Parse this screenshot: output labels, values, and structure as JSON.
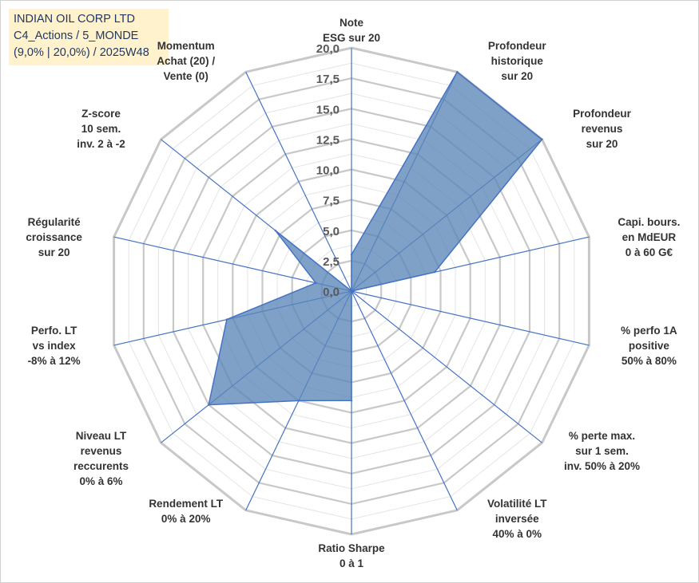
{
  "title": {
    "line1": "INDIAN OIL CORP LTD",
    "line2": "C4_Actions / 5_MONDE",
    "line3": "(9,0% | 20,0%) / 2025W48"
  },
  "colors": {
    "grid": "#c8c8c8",
    "spoke": "#4472c4",
    "fill": "#5b87b9",
    "fill_stroke": "#4472c4",
    "title_bg": "#fff2cc",
    "title_text": "#1f3864"
  },
  "chart_data": {
    "type": "radar",
    "rmax": 20,
    "ticks": [
      "0,0",
      "2,5",
      "5,0",
      "7,5",
      "10,0",
      "12,5",
      "15,0",
      "17,5",
      "20,0"
    ],
    "tick_values": [
      0,
      2.5,
      5,
      7.5,
      10,
      12.5,
      15,
      17.5,
      20
    ],
    "axes": [
      {
        "lines": [
          "Note",
          "ESG sur 20"
        ]
      },
      {
        "lines": [
          "Profondeur",
          "historique",
          "sur 20"
        ]
      },
      {
        "lines": [
          "Profondeur",
          "revenus",
          "sur 20"
        ]
      },
      {
        "lines": [
          "Capi. bours.",
          "en MdEUR",
          "0 à 60 G€"
        ]
      },
      {
        "lines": [
          "% perfo 1A",
          "positive",
          "50% à 80%"
        ]
      },
      {
        "lines": [
          "% perte max.",
          "sur 1 sem.",
          "inv. 50% à 20%"
        ]
      },
      {
        "lines": [
          "Volatilité LT",
          "inversée",
          "40% à 0%"
        ]
      },
      {
        "lines": [
          "Ratio Sharpe",
          "0 à 1"
        ]
      },
      {
        "lines": [
          "Rendement LT",
          "0% à 20%"
        ]
      },
      {
        "lines": [
          "Niveau LT",
          "revenus",
          "reccurents",
          "0% à 6%"
        ]
      },
      {
        "lines": [
          "Perfo. LT",
          "vs index",
          "-8% à 12%"
        ]
      },
      {
        "lines": [
          "Régularité",
          "croissance",
          "sur 20"
        ]
      },
      {
        "lines": [
          "Z-score",
          "10 sem.",
          "inv. 2 à -2"
        ]
      },
      {
        "lines": [
          "Momentum",
          "Achat (20) /",
          "Vente (0)"
        ]
      }
    ],
    "series": [
      {
        "name": "INDIAN OIL CORP LTD",
        "values": [
          3.0,
          20.0,
          20.0,
          7.0,
          0.0,
          0.0,
          0.0,
          9.0,
          10.0,
          15.0,
          10.5,
          3.0,
          8.0,
          0.0
        ]
      }
    ]
  }
}
